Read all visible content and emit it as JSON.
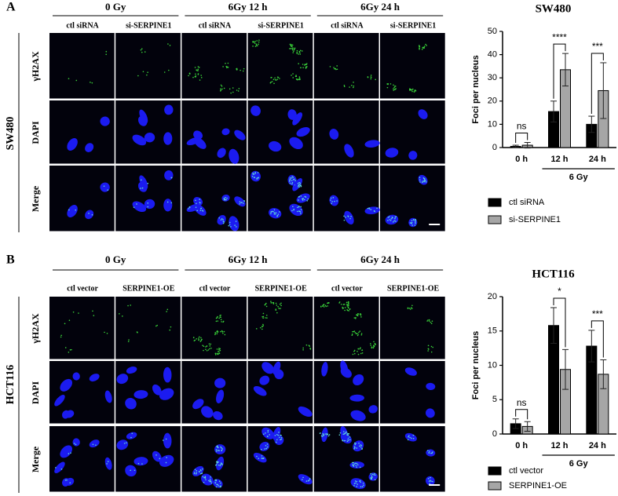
{
  "panels": [
    {
      "letter": "A",
      "cell_line": "SW480",
      "groups": [
        "0 Gy",
        "6Gy  12 h",
        "6Gy  24 h"
      ],
      "conditions": [
        "ctl siRNA",
        "si-SERPINE1"
      ],
      "rows": [
        "γH2AX",
        "DAPI",
        "Merge"
      ]
    },
    {
      "letter": "B",
      "cell_line": "HCT116",
      "groups": [
        "0 Gy",
        "6Gy  12 h",
        "6Gy  24 h"
      ],
      "conditions": [
        "ctl vector",
        "SERPINE1-OE"
      ],
      "rows": [
        "γH2AX",
        "DAPI",
        "Merge"
      ]
    }
  ],
  "chart_data": [
    {
      "type": "bar",
      "title": "SW480",
      "y_label": "Foci per nucleus",
      "categories": [
        "0 h",
        "12 h",
        "24 h"
      ],
      "group_label": "6 Gy",
      "series": [
        {
          "name": "ctl siRNA",
          "color": "#000000",
          "values": [
            0.5,
            15.5,
            10
          ],
          "errors": [
            0.5,
            4.5,
            3.5
          ]
        },
        {
          "name": "si-SERPINE1",
          "color": "#a6a6a6",
          "values": [
            1,
            33.5,
            24.5
          ],
          "errors": [
            1.2,
            7,
            12
          ]
        }
      ],
      "significance": [
        "ns",
        "****",
        "***"
      ],
      "ylim": [
        0,
        50
      ],
      "yticks": [
        0,
        10,
        20,
        30,
        40,
        50
      ]
    },
    {
      "type": "bar",
      "title": "HCT116",
      "y_label": "Foci per nucleus",
      "categories": [
        "0 h",
        "12 h",
        "24 h"
      ],
      "group_label": "6 Gy",
      "series": [
        {
          "name": "ctl vector",
          "color": "#000000",
          "values": [
            1.5,
            15.8,
            12.8
          ],
          "errors": [
            0.7,
            2.6,
            2.3
          ]
        },
        {
          "name": "SERPINE1-OE",
          "color": "#a6a6a6",
          "values": [
            1.1,
            9.4,
            8.7
          ],
          "errors": [
            0.7,
            2.9,
            2.1
          ]
        }
      ],
      "significance": [
        "ns",
        "*",
        "***"
      ],
      "ylim": [
        0,
        20
      ],
      "yticks": [
        0,
        5,
        10,
        15,
        20
      ]
    }
  ]
}
